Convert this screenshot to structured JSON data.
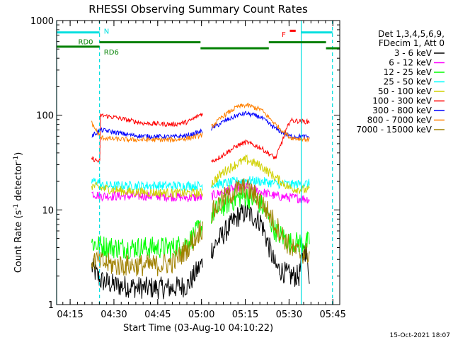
{
  "chart_data": {
    "type": "line",
    "title": "RHESSI Observing Summary Count Rates",
    "xlabel": "Start Time (03-Aug-10 04:10:22)",
    "ylabel": "Count Rate (s⁻¹ detector⁻¹)",
    "ylabel_parts": [
      "Count Rate (s",
      "-1",
      " detector",
      "-1",
      ")"
    ],
    "yscale": "log",
    "ylim": [
      1,
      1000
    ],
    "yticks": [
      {
        "value": 1,
        "label": "1"
      },
      {
        "value": 10,
        "label": "10"
      },
      {
        "value": 100,
        "label": "100"
      },
      {
        "value": 1000,
        "label": "1000"
      }
    ],
    "xlim_min": [
      0,
      97
    ],
    "x_unit": "minutes after 04:10:22",
    "xticks": [
      {
        "value": 4.63,
        "label": "04:15"
      },
      {
        "value": 19.63,
        "label": "04:30"
      },
      {
        "value": 34.63,
        "label": "04:45"
      },
      {
        "value": 49.63,
        "label": "05:00"
      },
      {
        "value": 64.63,
        "label": "05:15"
      },
      {
        "value": 79.63,
        "label": "05:30"
      },
      {
        "value": 94.63,
        "label": "05:45"
      }
    ],
    "legend_header": [
      "Det 1,3,4,5,6,9,",
      "FDecim 1, Att 0"
    ],
    "legend_position": "right",
    "footer_date": "15-Oct-2021 18:07",
    "gap_intervals": [
      [
        0,
        12
      ],
      [
        50,
        53
      ],
      [
        86.7,
        97
      ]
    ],
    "data_windows": [
      [
        12,
        50
      ],
      [
        53,
        86.7
      ]
    ],
    "colors": {
      "axis": "#000000",
      "night": "#00e0e0",
      "saa": "#008000",
      "flare": "#ff0000"
    },
    "series": [
      {
        "name": "3 - 6 keV",
        "color": "#000000",
        "x": [
          12,
          15,
          20,
          30,
          40,
          45,
          50,
          53,
          57,
          62,
          65,
          70,
          75,
          80,
          83,
          85,
          86.7
        ],
        "y": [
          2.5,
          1.8,
          1.6,
          1.5,
          1.5,
          1.6,
          2.8,
          3.8,
          5.5,
          8.5,
          9.5,
          7.5,
          2.5,
          2.0,
          2.0,
          4.0,
          2.0
        ]
      },
      {
        "name": "6 - 12 keV",
        "color": "#ff00ff",
        "x": [
          12,
          15,
          25,
          35,
          45,
          50,
          53,
          57,
          62,
          65,
          70,
          75,
          80,
          86.7
        ],
        "y": [
          15,
          14,
          14,
          14,
          13.5,
          13.5,
          14,
          15.5,
          17,
          17.5,
          15.5,
          14,
          13.5,
          13
        ]
      },
      {
        "name": "12 - 25 keV",
        "color": "#00ff00",
        "x": [
          12,
          15,
          20,
          30,
          40,
          45,
          50,
          53,
          57,
          62,
          65,
          70,
          75,
          80,
          83,
          86.7
        ],
        "y": [
          4.5,
          4.2,
          4.0,
          4.0,
          4.0,
          4.5,
          7.0,
          9.0,
          11,
          13.5,
          14,
          11.5,
          6.0,
          4.5,
          4.5,
          4.5
        ]
      },
      {
        "name": "25 - 50 keV",
        "color": "#00ffff",
        "x": [
          12,
          14.9,
          15,
          30,
          45,
          50,
          53,
          57,
          62,
          65,
          70,
          75,
          80,
          86.7
        ],
        "y": [
          20,
          20,
          18,
          18,
          18,
          18,
          18.5,
          19,
          20,
          20.5,
          20,
          19,
          18.5,
          19
        ]
      },
      {
        "name": "50 - 100 keV",
        "color": "#d0d000",
        "x": [
          12,
          15,
          25,
          40,
          50,
          53,
          57,
          62,
          65,
          70,
          75,
          80,
          86.7
        ],
        "y": [
          18,
          17,
          15.5,
          15,
          15,
          19,
          25,
          31,
          34,
          29,
          22,
          17,
          16
        ]
      },
      {
        "name": "100 - 300 keV",
        "color": "#ff0000",
        "x": [
          12,
          14.9,
          15,
          20,
          25,
          30,
          40,
          45,
          50,
          53,
          57,
          62,
          65,
          70,
          75,
          80,
          86.7
        ],
        "y": [
          35,
          32,
          100,
          95,
          88,
          82,
          80,
          85,
          105,
          32,
          38,
          48,
          52,
          45,
          35,
          88,
          85
        ]
      },
      {
        "name": "300 - 800 keV",
        "color": "#0000ff",
        "x": [
          12,
          15,
          20,
          25,
          30,
          40,
          45,
          50,
          53,
          57,
          62,
          65,
          70,
          75,
          80,
          86.7
        ],
        "y": [
          60,
          70,
          66,
          62,
          60,
          59,
          61,
          68,
          72,
          85,
          100,
          105,
          95,
          72,
          60,
          59
        ]
      },
      {
        "name": "800 - 7000 keV",
        "color": "#ff8000",
        "x": [
          12,
          15,
          20,
          25,
          30,
          40,
          45,
          50,
          53,
          57,
          62,
          65,
          70,
          75,
          80,
          86.7
        ],
        "y": [
          83,
          58,
          56,
          55,
          55,
          55,
          57,
          62,
          75,
          98,
          123,
          128,
          115,
          80,
          58,
          55
        ]
      },
      {
        "name": "7000 - 15000 keV",
        "color": "#a08000",
        "x": [
          12,
          15,
          20,
          25,
          30,
          35,
          40,
          45,
          50,
          53,
          57,
          62,
          65,
          70,
          75,
          80,
          83,
          86.7
        ],
        "y": [
          3.0,
          2.8,
          2.6,
          2.6,
          2.6,
          2.6,
          2.8,
          4.0,
          6.5,
          9.0,
          13,
          16.5,
          17,
          12.5,
          7.0,
          4.0,
          3.5,
          3.5
        ]
      }
    ],
    "night_lines": [
      {
        "x": 0,
        "style": "solid"
      },
      {
        "x": 14.7,
        "style": "dashed"
      },
      {
        "x": 83.8,
        "style": "solid"
      },
      {
        "x": 94.5,
        "style": "dashed"
      }
    ],
    "night_bars": [
      {
        "x0": 0,
        "x1": 14.7,
        "y": 750
      },
      {
        "x0": 83.8,
        "x1": 94.5,
        "y": 750
      }
    ],
    "saa_bars": [
      {
        "x0": 0,
        "x1": 14.7,
        "y": 530
      },
      {
        "x0": 14.7,
        "x1": 49.3,
        "y": 590
      },
      {
        "x0": 49.3,
        "x1": 72.7,
        "y": 510
      },
      {
        "x0": 72.7,
        "x1": 92.3,
        "y": 590
      },
      {
        "x0": 92.3,
        "x1": 97,
        "y": 510
      }
    ],
    "flare_bars": [
      {
        "x0": 79.9,
        "x1": 81.9,
        "y": 780
      }
    ],
    "annotations": [
      {
        "text": "N",
        "x": 16.2,
        "y": 780,
        "color": "#00e0e0"
      },
      {
        "text": "RD0",
        "x": 7.4,
        "y": 600,
        "color": "#008000"
      },
      {
        "text": "RD6",
        "x": 16.2,
        "y": 470,
        "color": "#008000"
      },
      {
        "text": "F",
        "x": 77.1,
        "y": 720,
        "color": "#ff0000"
      }
    ]
  }
}
